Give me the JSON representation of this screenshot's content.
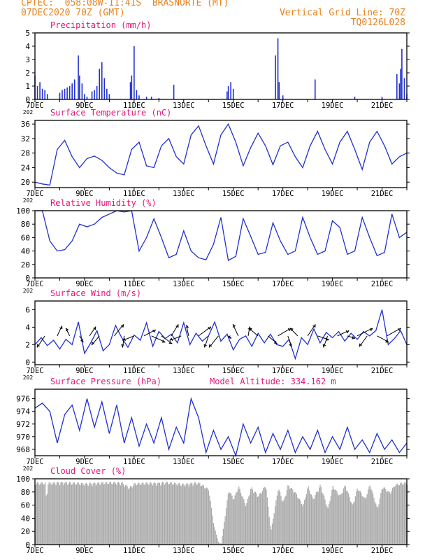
{
  "header": {
    "line1_left": "CPTEC:  058:08W-11:41S  BRASNORTE (MT)",
    "line2_left": "07DEC2020 70Z (GMT)",
    "line1_right": "Vertical Grid Line: 70Z",
    "line2_right": "TQ0126L028",
    "model_altitude": "Model Altitude: 334.162 m",
    "year_fragment": "202"
  },
  "colors": {
    "header": "#e8821e",
    "title": "#e0197d",
    "line": "#2030d0",
    "cloud": "#a9a9a9",
    "wind_arrow": "#000000"
  },
  "x_axis": {
    "range_days": [
      7,
      22
    ],
    "tick_labels": [
      "7DEC",
      "9DEC",
      "11DEC",
      "13DEC",
      "15DEC",
      "17DEC",
      "19DEC",
      "21DEC"
    ],
    "tick_days": [
      7,
      9,
      11,
      13,
      15,
      17,
      19,
      21
    ]
  },
  "chart_data": [
    {
      "type": "bar",
      "title": "Precipitation (mm/h)",
      "ylim": [
        0,
        5
      ],
      "yticks": [
        0,
        1,
        2,
        3,
        4,
        5
      ],
      "x_unit": "day_of_december",
      "x": [
        7.0,
        7.1,
        7.2,
        7.3,
        7.4,
        7.5,
        8.0,
        8.1,
        8.2,
        8.3,
        8.4,
        8.5,
        8.6,
        8.75,
        8.8,
        8.9,
        9.0,
        9.1,
        9.3,
        9.4,
        9.5,
        9.6,
        9.7,
        9.8,
        9.9,
        10.0,
        10.85,
        10.9,
        11.0,
        11.1,
        11.2,
        11.5,
        11.7,
        12.0,
        12.6,
        14.75,
        14.8,
        14.9,
        15.0,
        16.7,
        16.8,
        16.85,
        17.0,
        18.3,
        19.9,
        21.0,
        21.6,
        21.7,
        21.75,
        21.8,
        21.9,
        22.0
      ],
      "values": [
        1.8,
        1.0,
        1.3,
        0.8,
        0.7,
        0.4,
        0.5,
        0.7,
        0.8,
        0.9,
        1.0,
        1.2,
        1.5,
        3.3,
        1.8,
        1.2,
        0.4,
        0.2,
        0.6,
        0.7,
        1.0,
        2.3,
        2.8,
        1.6,
        0.8,
        0.4,
        1.3,
        1.8,
        4.0,
        0.7,
        0.3,
        0.2,
        0.2,
        0.1,
        1.1,
        0.6,
        1.0,
        1.3,
        0.8,
        3.3,
        4.6,
        1.3,
        0.3,
        1.5,
        0.2,
        0.2,
        1.9,
        1.2,
        2.3,
        3.8,
        1.6,
        0.4
      ]
    },
    {
      "type": "line",
      "title": "Surface Temperature (nC)",
      "ylim": [
        18.5,
        37
      ],
      "yticks": [
        20,
        24,
        28,
        32,
        36
      ],
      "x": [
        7.0,
        7.3,
        7.6,
        7.9,
        8.2,
        8.5,
        8.8,
        9.1,
        9.4,
        9.7,
        10.0,
        10.3,
        10.6,
        10.9,
        11.2,
        11.5,
        11.8,
        12.1,
        12.4,
        12.7,
        13.0,
        13.3,
        13.6,
        13.9,
        14.2,
        14.5,
        14.8,
        15.1,
        15.4,
        15.7,
        16.0,
        16.3,
        16.6,
        16.9,
        17.2,
        17.5,
        17.8,
        18.1,
        18.4,
        18.7,
        19.0,
        19.3,
        19.6,
        19.9,
        20.2,
        20.5,
        20.8,
        21.1,
        21.4,
        21.7,
        22.0
      ],
      "values": [
        20,
        19.5,
        19.2,
        29,
        31.5,
        27,
        24,
        26.5,
        27.2,
        26,
        24,
        22.5,
        22,
        29,
        31,
        24.5,
        24,
        30,
        32,
        27,
        25,
        33,
        35.5,
        30,
        25,
        33,
        36,
        31,
        24.5,
        29.5,
        33.5,
        30,
        24.8,
        30,
        31,
        27,
        24,
        30,
        34,
        29,
        25,
        31,
        34,
        29,
        23.5,
        31,
        34,
        30,
        25,
        27,
        28
      ]
    },
    {
      "type": "line",
      "title": "Relative Humidity (%)",
      "ylim": [
        0,
        100
      ],
      "yticks": [
        0,
        20,
        40,
        60,
        80,
        100
      ],
      "x": [
        7.0,
        7.3,
        7.6,
        7.9,
        8.2,
        8.5,
        8.8,
        9.1,
        9.4,
        9.7,
        10.0,
        10.3,
        10.6,
        10.9,
        11.2,
        11.5,
        11.8,
        12.1,
        12.4,
        12.7,
        13.0,
        13.3,
        13.6,
        13.9,
        14.2,
        14.5,
        14.8,
        15.1,
        15.4,
        15.7,
        16.0,
        16.3,
        16.6,
        16.9,
        17.2,
        17.5,
        17.8,
        18.1,
        18.4,
        18.7,
        19.0,
        19.3,
        19.6,
        19.9,
        20.2,
        20.5,
        20.8,
        21.1,
        21.4,
        21.7,
        22.0
      ],
      "values": [
        100,
        100,
        55,
        40,
        42,
        55,
        80,
        76,
        80,
        90,
        95,
        100,
        98,
        100,
        40,
        60,
        88,
        60,
        30,
        35,
        70,
        40,
        30,
        27,
        50,
        90,
        26,
        32,
        88,
        62,
        35,
        38,
        82,
        55,
        35,
        40,
        90,
        60,
        35,
        40,
        85,
        75,
        35,
        40,
        90,
        60,
        33,
        38,
        95,
        60,
        68
      ]
    },
    {
      "type": "line",
      "title": "Surface Wind (m/s)",
      "ylim": [
        -0.3,
        7
      ],
      "yticks": [
        0,
        2,
        4,
        6
      ],
      "x": [
        7.0,
        7.25,
        7.5,
        7.75,
        8.0,
        8.25,
        8.5,
        8.75,
        9.0,
        9.25,
        9.5,
        9.75,
        10.0,
        10.25,
        10.5,
        10.75,
        11.0,
        11.25,
        11.5,
        11.75,
        12.0,
        12.25,
        12.5,
        12.75,
        13.0,
        13.25,
        13.5,
        13.75,
        14.0,
        14.25,
        14.5,
        14.75,
        15.0,
        15.25,
        15.5,
        15.75,
        16.0,
        16.25,
        16.5,
        16.75,
        17.0,
        17.25,
        17.5,
        17.75,
        18.0,
        18.25,
        18.5,
        18.75,
        19.0,
        19.25,
        19.5,
        19.75,
        20.0,
        20.25,
        20.5,
        20.75,
        21.0,
        21.25,
        21.5,
        21.75,
        22.0
      ],
      "values": [
        2.0,
        2.8,
        1.9,
        2.5,
        1.5,
        2.6,
        2.0,
        4.6,
        1.0,
        2.2,
        3.6,
        1.3,
        2.0,
        4.2,
        2.8,
        1.7,
        3.1,
        2.5,
        4.5,
        1.8,
        3.5,
        2.7,
        3.2,
        2.2,
        4.5,
        2.0,
        3.3,
        2.4,
        3.0,
        4.6,
        2.4,
        3.2,
        1.4,
        2.6,
        3.0,
        1.8,
        3.3,
        2.2,
        3.2,
        2.0,
        1.8,
        2.6,
        0.4,
        2.8,
        2.0,
        3.8,
        2.2,
        3.4,
        2.8,
        3.5,
        2.4,
        3.3,
        2.6,
        3.5,
        3.0,
        3.6,
        6.0,
        2.0,
        2.7,
        3.6,
        2.0
      ]
    },
    {
      "type": "line",
      "title": "Surface Pressure (hPa)",
      "ylim": [
        967,
        977.5
      ],
      "yticks": [
        968,
        970,
        972,
        974,
        976
      ],
      "x": [
        7.0,
        7.3,
        7.6,
        7.9,
        8.2,
        8.5,
        8.8,
        9.1,
        9.4,
        9.7,
        10.0,
        10.3,
        10.6,
        10.9,
        11.2,
        11.5,
        11.8,
        12.1,
        12.4,
        12.7,
        13.0,
        13.3,
        13.6,
        13.9,
        14.2,
        14.5,
        14.8,
        15.1,
        15.4,
        15.7,
        16.0,
        16.3,
        16.6,
        16.9,
        17.2,
        17.5,
        17.8,
        18.1,
        18.4,
        18.7,
        19.0,
        19.3,
        19.6,
        19.9,
        20.2,
        20.5,
        20.8,
        21.1,
        21.4,
        21.7,
        22.0
      ],
      "values": [
        974.5,
        975.3,
        974,
        969,
        973.5,
        975,
        971,
        976,
        971.5,
        975.5,
        970.5,
        975,
        969,
        973,
        968.5,
        972,
        969,
        973,
        968,
        971.5,
        969,
        976,
        973,
        967.5,
        971,
        968,
        970,
        967,
        972,
        969,
        971.5,
        967.5,
        970.5,
        968,
        971,
        967.5,
        970,
        968,
        971,
        967.5,
        970,
        968,
        971.5,
        968,
        969.5,
        967.5,
        970.5,
        968,
        969.5,
        967.5,
        969
      ]
    },
    {
      "type": "area",
      "title": "Cloud Cover (%)",
      "ylim": [
        0,
        100
      ],
      "yticks": [
        0,
        20,
        40,
        60,
        80,
        100
      ],
      "x": [
        7.0,
        7.4,
        7.45,
        7.5,
        7.7,
        8.0,
        8.5,
        9.0,
        9.5,
        10.0,
        10.5,
        10.8,
        11.0,
        11.5,
        12.0,
        12.3,
        12.5,
        13.0,
        13.4,
        13.6,
        13.8,
        14.0,
        14.2,
        14.4,
        14.5,
        14.8,
        15.0,
        15.2,
        15.5,
        15.7,
        16.0,
        16.3,
        16.5,
        16.8,
        17.0,
        17.2,
        17.5,
        17.8,
        18.0,
        18.2,
        18.5,
        18.8,
        19.0,
        19.3,
        19.5,
        19.8,
        20.0,
        20.3,
        20.5,
        20.8,
        21.0,
        21.3,
        21.5,
        21.8,
        22.0
      ],
      "values": [
        95,
        95,
        65,
        95,
        95,
        96,
        95,
        94,
        95,
        96,
        95,
        88,
        94,
        95,
        95,
        96,
        95,
        93,
        95,
        95,
        90,
        85,
        30,
        2,
        2,
        85,
        70,
        90,
        60,
        88,
        75,
        92,
        20,
        88,
        65,
        92,
        80,
        60,
        90,
        70,
        92,
        55,
        90,
        75,
        92,
        60,
        88,
        70,
        93,
        55,
        90,
        80,
        92,
        95,
        95
      ]
    }
  ],
  "wind_arrows": {
    "x": [
      7.4,
      7.9,
      8.4,
      8.8,
      9.2,
      9.6,
      10.2,
      10.6,
      11.0,
      11.4,
      11.7,
      12.1,
      12.5,
      12.9,
      13.2,
      13.6,
      14.0,
      14.4,
      14.8,
      15.2,
      15.6,
      16.0,
      16.4,
      16.8,
      17.2,
      17.6,
      18.0,
      18.4,
      18.8,
      19.2,
      19.6,
      20.0,
      20.4,
      20.8,
      21.2
    ],
    "u": [
      -1.0,
      0.6,
      -0.5,
      0.5,
      0.8,
      -1.0,
      1.2,
      -0.2,
      -1.5,
      1.5,
      1.8,
      1.4,
      0.9,
      -1.5,
      -0.3,
      1.6,
      -0.5,
      -1.2,
      0.4,
      -0.7,
      0.2,
      -1.2,
      1.2,
      1.7,
      0.5,
      -1.0,
      1.0,
      1.5,
      -0.5,
      1.5,
      1.0,
      2.0,
      -1.0,
      1.5,
      1.8
    ],
    "v": [
      -1.5,
      1.3,
      1.0,
      -0.8,
      1.2,
      -1.2,
      1.5,
      -1.5,
      -0.6,
      0.8,
      -0.8,
      -1.0,
      1.5,
      -0.6,
      1.4,
      1.2,
      -1.5,
      -1.5,
      -0.3,
      1.5,
      1.2,
      1.0,
      -1.0,
      1.0,
      -1.4,
      1.0,
      1.5,
      -0.5,
      -1.5,
      0.7,
      -0.3,
      1.0,
      -1.4,
      -0.8,
      1.0
    ]
  }
}
